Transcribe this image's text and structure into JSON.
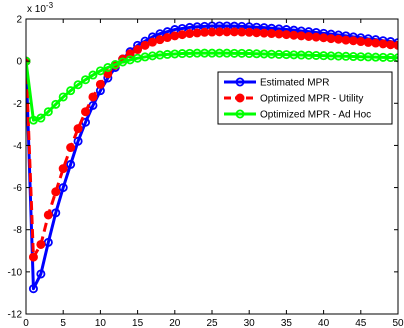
{
  "chart_data": {
    "type": "line",
    "title": "",
    "xlabel": "",
    "ylabel": "",
    "y_exponent_label": "x 10",
    "y_exponent": "-3",
    "xlim": [
      0,
      50
    ],
    "ylim": [
      -12,
      2
    ],
    "x_ticks": [
      0,
      5,
      10,
      15,
      20,
      25,
      30,
      35,
      40,
      45,
      50
    ],
    "y_ticks": [
      -12,
      -10,
      -8,
      -6,
      -4,
      -2,
      0,
      2
    ],
    "grid": false,
    "legend_placement": "right",
    "x": [
      0,
      1,
      2,
      3,
      4,
      5,
      6,
      7,
      8,
      9,
      10,
      11,
      12,
      13,
      14,
      15,
      16,
      17,
      18,
      19,
      20,
      21,
      22,
      23,
      24,
      25,
      26,
      27,
      28,
      29,
      30,
      31,
      32,
      33,
      34,
      35,
      36,
      37,
      38,
      39,
      40,
      41,
      42,
      43,
      44,
      45,
      46,
      47,
      48,
      49,
      50
    ],
    "series": [
      {
        "name": "Estimated MPR",
        "color": "#0000ff",
        "style": "solid",
        "marker": "circle",
        "values": [
          0,
          -10.8,
          -10.1,
          -8.6,
          -7.2,
          -6.0,
          -4.9,
          -3.8,
          -2.9,
          -2.1,
          -1.4,
          -0.8,
          -0.3,
          0.1,
          0.45,
          0.75,
          0.95,
          1.15,
          1.3,
          1.4,
          1.5,
          1.55,
          1.6,
          1.63,
          1.65,
          1.67,
          1.67,
          1.67,
          1.66,
          1.65,
          1.63,
          1.61,
          1.59,
          1.56,
          1.53,
          1.5,
          1.47,
          1.43,
          1.4,
          1.36,
          1.32,
          1.28,
          1.24,
          1.2,
          1.15,
          1.11,
          1.06,
          1.02,
          0.97,
          0.93,
          0.88
        ]
      },
      {
        "name": "Optimized MPR - Utility",
        "color": "#ff0000",
        "style": "dashed",
        "marker": "circle",
        "values": [
          0,
          -9.3,
          -8.7,
          -7.3,
          -6.2,
          -5.1,
          -4.1,
          -3.2,
          -2.4,
          -1.7,
          -1.1,
          -0.6,
          -0.2,
          0.1,
          0.35,
          0.55,
          0.75,
          0.9,
          1.02,
          1.12,
          1.2,
          1.26,
          1.31,
          1.34,
          1.37,
          1.38,
          1.39,
          1.39,
          1.39,
          1.38,
          1.37,
          1.35,
          1.33,
          1.31,
          1.29,
          1.26,
          1.23,
          1.2,
          1.17,
          1.14,
          1.11,
          1.07,
          1.04,
          1.0,
          0.97,
          0.93,
          0.89,
          0.86,
          0.82,
          0.78,
          0.75
        ]
      },
      {
        "name": "Optimized MPR - Ad Hoc",
        "color": "#00ff00",
        "style": "solid",
        "marker": "circle",
        "values": [
          0,
          -2.8,
          -2.7,
          -2.4,
          -2.05,
          -1.7,
          -1.4,
          -1.12,
          -0.88,
          -0.66,
          -0.46,
          -0.3,
          -0.16,
          -0.04,
          0.06,
          0.14,
          0.2,
          0.25,
          0.29,
          0.32,
          0.34,
          0.36,
          0.37,
          0.38,
          0.38,
          0.38,
          0.38,
          0.38,
          0.37,
          0.37,
          0.36,
          0.35,
          0.34,
          0.33,
          0.32,
          0.31,
          0.3,
          0.29,
          0.28,
          0.27,
          0.26,
          0.25,
          0.24,
          0.23,
          0.22,
          0.21,
          0.2,
          0.19,
          0.18,
          0.17,
          0.16
        ]
      }
    ]
  }
}
